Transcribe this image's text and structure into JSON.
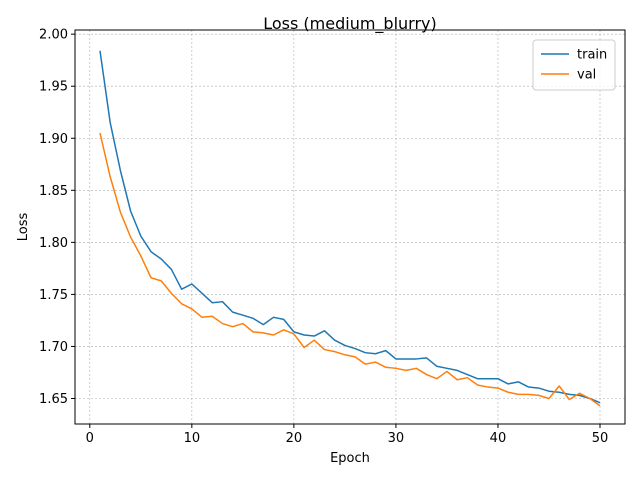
{
  "chart_data": {
    "type": "line",
    "title": "Loss (medium_blurry)",
    "xlabel": "Epoch",
    "ylabel": "Loss",
    "xlim": [
      -1.45,
      52.45
    ],
    "ylim": [
      1.6255,
      2.004
    ],
    "xticks": [
      0,
      10,
      20,
      30,
      40,
      50
    ],
    "yticks": [
      1.65,
      1.7,
      1.75,
      1.8,
      1.85,
      1.9,
      1.95,
      2.0
    ],
    "ytick_labels": [
      "1.65",
      "1.70",
      "1.75",
      "1.80",
      "1.85",
      "1.90",
      "1.95",
      "2.00"
    ],
    "grid": true,
    "legend_position": "top-right",
    "x": [
      1,
      2,
      3,
      4,
      5,
      6,
      7,
      8,
      9,
      10,
      11,
      12,
      13,
      14,
      15,
      16,
      17,
      18,
      19,
      20,
      21,
      22,
      23,
      24,
      25,
      26,
      27,
      28,
      29,
      30,
      31,
      32,
      33,
      34,
      35,
      36,
      37,
      38,
      39,
      40,
      41,
      42,
      43,
      44,
      45,
      46,
      47,
      48,
      49,
      50
    ],
    "series": [
      {
        "name": "train",
        "color": "#1f77b4",
        "values": [
          1.984,
          1.915,
          1.869,
          1.83,
          1.806,
          1.791,
          1.784,
          1.774,
          1.755,
          1.76,
          1.751,
          1.742,
          1.743,
          1.733,
          1.73,
          1.727,
          1.721,
          1.728,
          1.726,
          1.714,
          1.711,
          1.71,
          1.715,
          1.706,
          1.701,
          1.698,
          1.694,
          1.693,
          1.696,
          1.688,
          1.688,
          1.688,
          1.689,
          1.681,
          1.679,
          1.677,
          1.673,
          1.669,
          1.669,
          1.669,
          1.664,
          1.666,
          1.661,
          1.66,
          1.657,
          1.656,
          1.654,
          1.653,
          1.65,
          1.646
        ]
      },
      {
        "name": "val",
        "color": "#ff7f0e",
        "values": [
          1.905,
          1.863,
          1.829,
          1.805,
          1.787,
          1.766,
          1.763,
          1.751,
          1.741,
          1.736,
          1.728,
          1.729,
          1.722,
          1.719,
          1.722,
          1.714,
          1.713,
          1.711,
          1.716,
          1.712,
          1.699,
          1.706,
          1.697,
          1.695,
          1.692,
          1.69,
          1.683,
          1.685,
          1.68,
          1.679,
          1.677,
          1.679,
          1.673,
          1.669,
          1.676,
          1.668,
          1.67,
          1.663,
          1.661,
          1.66,
          1.656,
          1.654,
          1.654,
          1.653,
          1.65,
          1.662,
          1.649,
          1.655,
          1.65,
          1.643
        ]
      }
    ]
  }
}
